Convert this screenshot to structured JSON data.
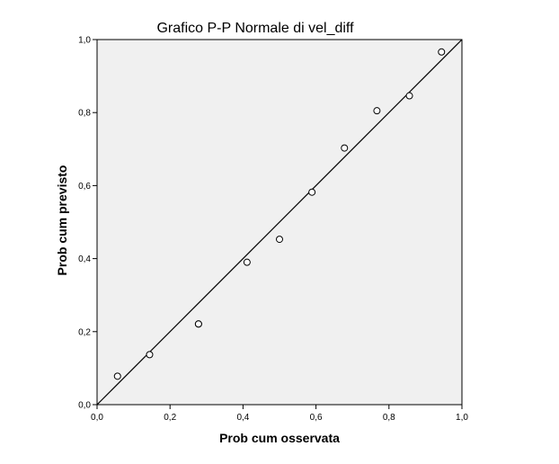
{
  "chart_data": {
    "type": "scatter",
    "title": "Grafico P-P Normale di vel_diff",
    "xlabel": "Prob cum osservata",
    "ylabel": "Prob cum previsto",
    "xlim": [
      0,
      1
    ],
    "ylim": [
      0,
      1
    ],
    "x_ticks": [
      "0,0",
      "0,2",
      "0,4",
      "0,6",
      "0,8",
      "1,0"
    ],
    "y_ticks": [
      "0,0",
      "0,2",
      "0,4",
      "0,6",
      "0,8",
      "1,0"
    ],
    "grid": false,
    "reference_line": [
      [
        0,
        0
      ],
      [
        1,
        1
      ]
    ],
    "points": [
      {
        "x": 0.056,
        "y": 0.078
      },
      {
        "x": 0.144,
        "y": 0.137
      },
      {
        "x": 0.278,
        "y": 0.221
      },
      {
        "x": 0.278,
        "y": 0.221
      },
      {
        "x": 0.411,
        "y": 0.39
      },
      {
        "x": 0.5,
        "y": 0.453
      },
      {
        "x": 0.589,
        "y": 0.582
      },
      {
        "x": 0.678,
        "y": 0.703
      },
      {
        "x": 0.767,
        "y": 0.805
      },
      {
        "x": 0.856,
        "y": 0.846
      },
      {
        "x": 0.944,
        "y": 0.966
      }
    ],
    "colors": {
      "plot_background": "#f0f0f0",
      "line": "#000000",
      "marker_stroke": "#000000",
      "marker_fill": "#ffffff"
    }
  }
}
